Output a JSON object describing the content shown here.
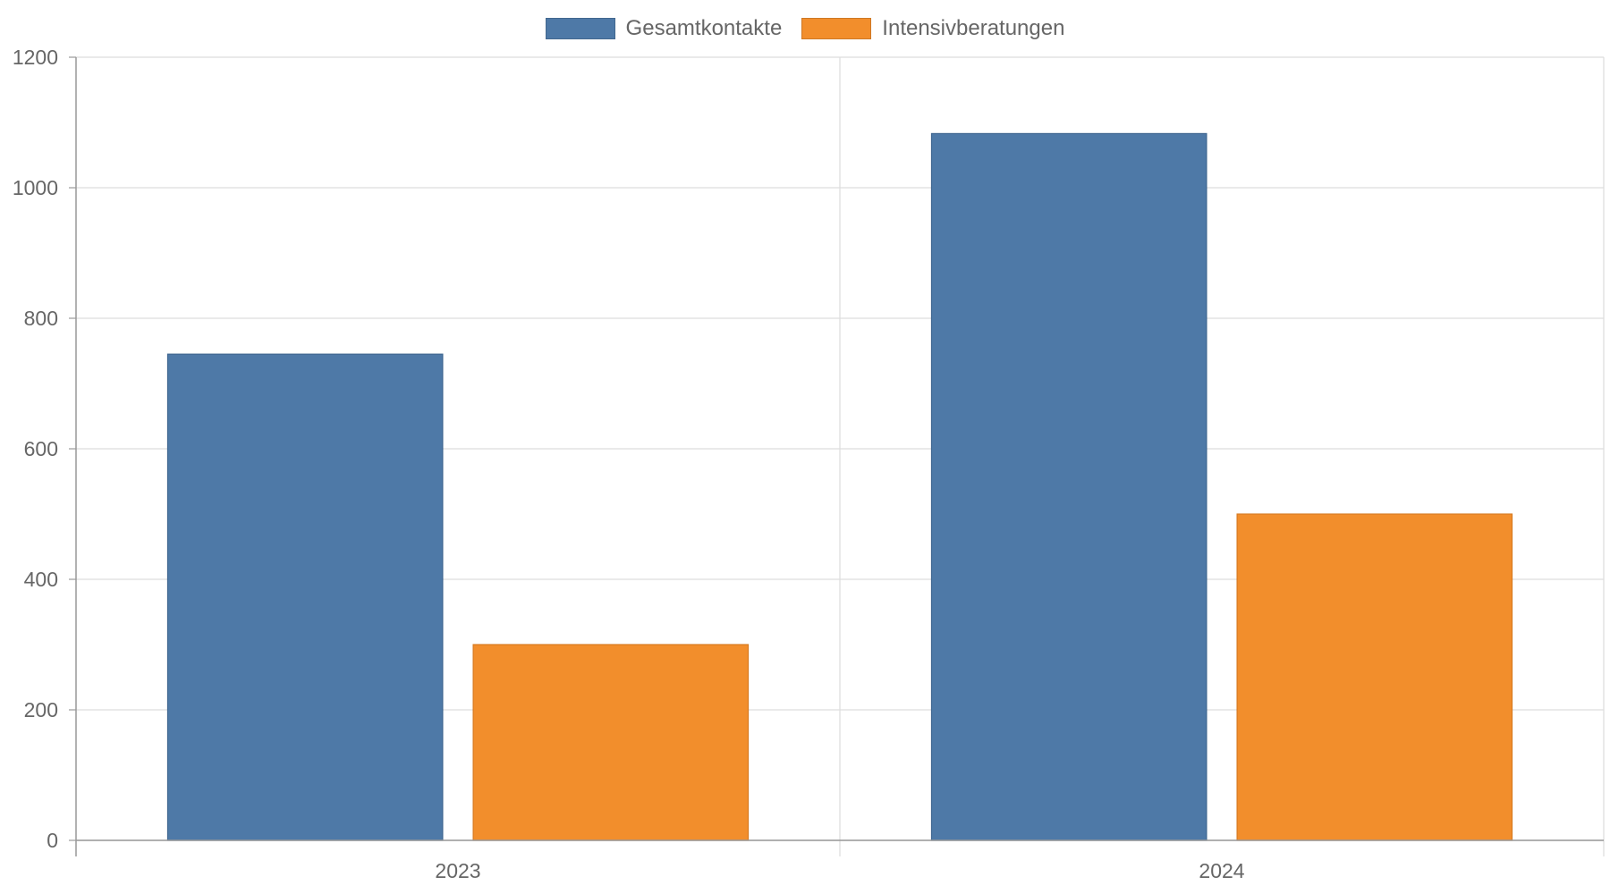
{
  "chart_data": {
    "type": "bar",
    "categories": [
      "2023",
      "2024"
    ],
    "series": [
      {
        "name": "Gesamtkontakte",
        "values": [
          745,
          1083
        ],
        "color": "#4e79a7"
      },
      {
        "name": "Intensivberatungen",
        "values": [
          300,
          500
        ],
        "color": "#f28e2c"
      }
    ],
    "ylim": [
      0,
      1200
    ],
    "yticks": [
      0,
      200,
      400,
      600,
      800,
      1000,
      1200
    ],
    "title": "",
    "xlabel": "",
    "ylabel": "",
    "grid": true,
    "legend_position": "top-center"
  }
}
